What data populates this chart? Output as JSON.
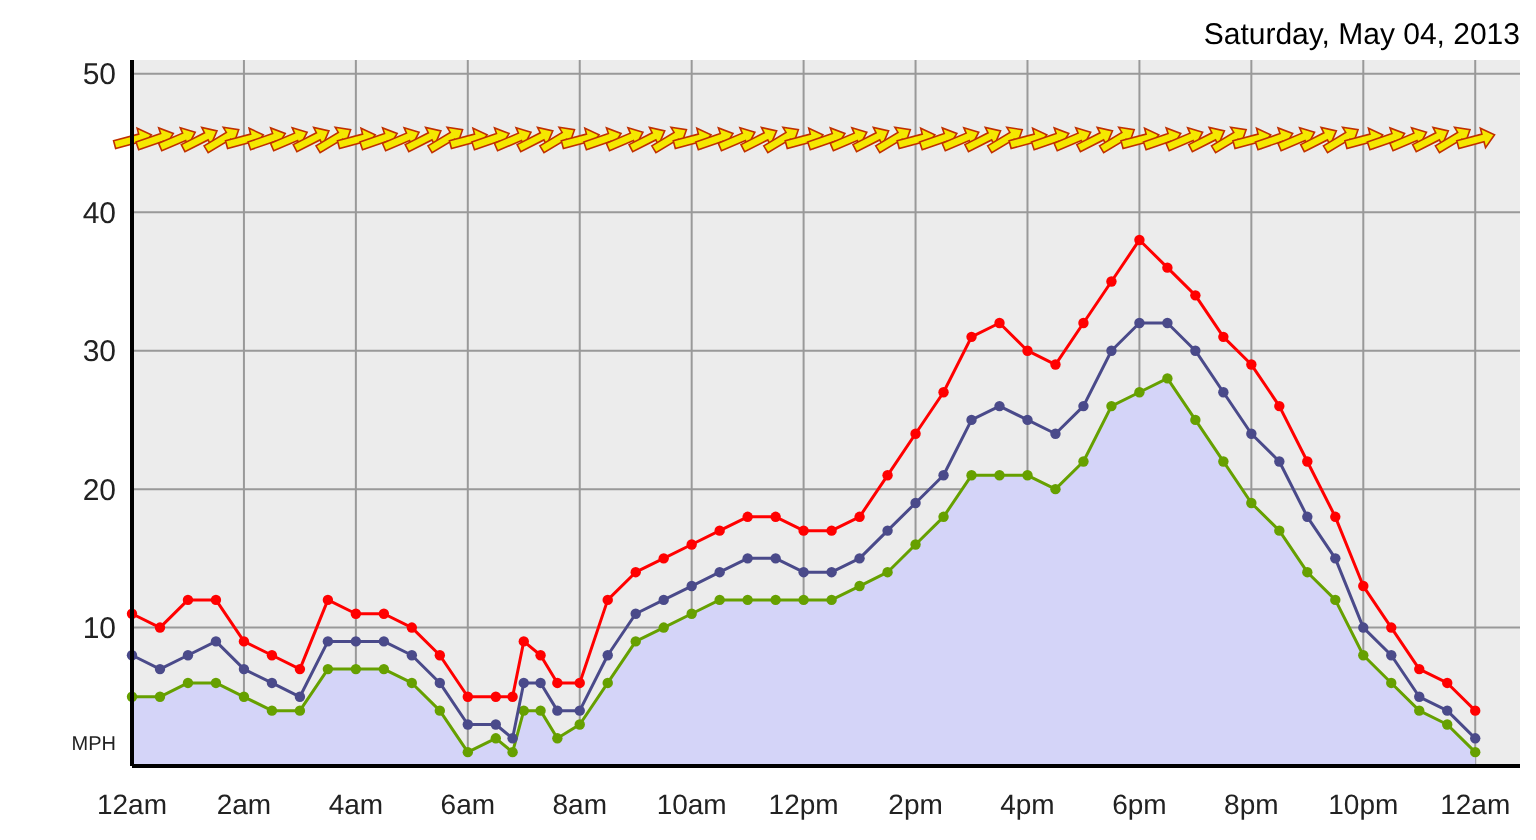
{
  "chart_data": {
    "type": "line",
    "title": "Saturday, May 04, 2013",
    "ylabel": "MPH",
    "xlim": [
      "2013-05-04T00:00",
      "2013-05-05T00:48"
    ],
    "ylim": [
      0,
      51
    ],
    "xticks": [
      {
        "value": "2013-05-04T00:00",
        "label": "12am"
      },
      {
        "value": "2013-05-04T02:00",
        "label": "2am"
      },
      {
        "value": "2013-05-04T04:00",
        "label": "4am"
      },
      {
        "value": "2013-05-04T06:00",
        "label": "6am"
      },
      {
        "value": "2013-05-04T08:00",
        "label": "8am"
      },
      {
        "value": "2013-05-04T10:00",
        "label": "10am"
      },
      {
        "value": "2013-05-04T12:00",
        "label": "12pm"
      },
      {
        "value": "2013-05-04T14:00",
        "label": "2pm"
      },
      {
        "value": "2013-05-04T16:00",
        "label": "4pm"
      },
      {
        "value": "2013-05-04T18:00",
        "label": "6pm"
      },
      {
        "value": "2013-05-04T20:00",
        "label": "8pm"
      },
      {
        "value": "2013-05-04T22:00",
        "label": "10pm"
      },
      {
        "value": "2013-05-05T00:00",
        "label": "12am"
      }
    ],
    "yticks": [
      10,
      20,
      30,
      40,
      50
    ],
    "grid": true,
    "marker": "circle",
    "x": [
      "2013-05-04T00:00",
      "2013-05-04T00:30",
      "2013-05-04T01:00",
      "2013-05-04T01:30",
      "2013-05-04T02:00",
      "2013-05-04T02:30",
      "2013-05-04T03:00",
      "2013-05-04T03:30",
      "2013-05-04T04:00",
      "2013-05-04T04:30",
      "2013-05-04T05:00",
      "2013-05-04T05:30",
      "2013-05-04T06:00",
      "2013-05-04T06:30",
      "2013-05-04T06:48",
      "2013-05-04T07:00",
      "2013-05-04T07:18",
      "2013-05-04T07:36",
      "2013-05-04T08:00",
      "2013-05-04T08:30",
      "2013-05-04T09:00",
      "2013-05-04T09:30",
      "2013-05-04T10:00",
      "2013-05-04T10:30",
      "2013-05-04T11:00",
      "2013-05-04T11:30",
      "2013-05-04T12:00",
      "2013-05-04T12:30",
      "2013-05-04T13:00",
      "2013-05-04T13:30",
      "2013-05-04T14:00",
      "2013-05-04T14:30",
      "2013-05-04T15:00",
      "2013-05-04T15:30",
      "2013-05-04T16:00",
      "2013-05-04T16:30",
      "2013-05-04T17:00",
      "2013-05-04T17:30",
      "2013-05-04T18:00",
      "2013-05-04T18:30",
      "2013-05-04T19:00",
      "2013-05-04T19:30",
      "2013-05-04T20:00",
      "2013-05-04T20:30",
      "2013-05-04T21:00",
      "2013-05-04T21:30",
      "2013-05-04T22:00",
      "2013-05-04T22:30",
      "2013-05-04T23:00",
      "2013-05-04T23:30",
      "2013-05-05T00:00"
    ],
    "series": [
      {
        "type": "area",
        "color": "#66a000",
        "values": [
          5,
          5,
          6,
          6,
          5,
          4,
          4,
          7,
          7,
          7,
          6,
          4,
          1,
          2,
          1,
          4,
          4,
          2,
          3,
          6,
          9,
          10,
          11,
          12,
          12,
          12,
          12,
          12,
          13,
          14,
          16,
          18,
          21,
          21,
          21,
          20,
          22,
          26,
          27,
          28,
          25,
          22,
          19,
          17,
          14,
          12,
          8,
          6,
          4,
          3,
          1
        ]
      },
      {
        "color": "#ff0000",
        "values": [
          11,
          10,
          12,
          12,
          9,
          8,
          7,
          12,
          11,
          11,
          10,
          8,
          5,
          5,
          5,
          9,
          8,
          6,
          6,
          12,
          14,
          15,
          16,
          17,
          18,
          18,
          17,
          17,
          18,
          21,
          24,
          27,
          31,
          32,
          30,
          29,
          32,
          35,
          38,
          36,
          34,
          31,
          29,
          26,
          22,
          18,
          13,
          10,
          7,
          6,
          4
        ]
      },
      {
        "color": "#4a4a8a",
        "values": [
          8,
          7,
          8,
          9,
          7,
          6,
          5,
          9,
          9,
          9,
          8,
          6,
          3,
          3,
          2,
          6,
          6,
          4,
          4,
          8,
          11,
          12,
          13,
          14,
          15,
          15,
          14,
          14,
          15,
          17,
          19,
          21,
          25,
          26,
          25,
          24,
          26,
          30,
          32,
          32,
          30,
          27,
          24,
          22,
          18,
          15,
          10,
          8,
          5,
          4,
          2
        ]
      }
    ]
  }
}
